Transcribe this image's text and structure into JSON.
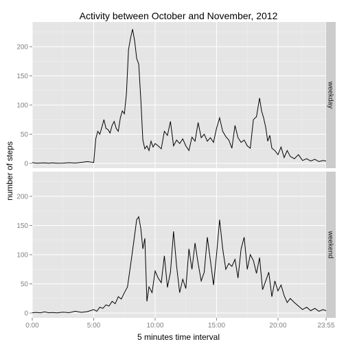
{
  "chart_data": {
    "type": "line",
    "title": "Activity between October and November, 2012",
    "xlabel": "5 minutes time interval",
    "ylabel": "number of steps",
    "xlim": [
      "0:00",
      "23:55"
    ],
    "ylim": [
      0,
      235
    ],
    "x_tick_labels": [
      "0:00",
      "5:00",
      "10:00",
      "15:00",
      "20:00",
      "23:55"
    ],
    "y_tick_labels": [
      "0",
      "50",
      "100",
      "150",
      "200"
    ],
    "y_ticks": [
      0,
      50,
      100,
      150,
      200
    ],
    "grid": true,
    "facets": [
      "weekday",
      "weekend"
    ],
    "colors": {
      "panel_bg": "#e5e5e5",
      "grid": "#ffffff",
      "strip_bg": "#cccccc",
      "line": "#000000"
    },
    "series": [
      {
        "name": "weekday",
        "x": [
          "0:00",
          "0:20",
          "0:40",
          "1:00",
          "1:20",
          "1:40",
          "2:00",
          "2:30",
          "3:00",
          "3:30",
          "4:00",
          "4:30",
          "5:00",
          "5:10",
          "5:20",
          "5:30",
          "5:40",
          "5:50",
          "6:00",
          "6:10",
          "6:20",
          "6:30",
          "6:40",
          "6:50",
          "7:00",
          "7:10",
          "7:20",
          "7:30",
          "7:40",
          "7:50",
          "8:00",
          "8:10",
          "8:20",
          "8:25",
          "8:30",
          "8:35",
          "8:40",
          "8:50",
          "9:00",
          "9:10",
          "9:20",
          "9:30",
          "9:40",
          "9:50",
          "10:00",
          "10:15",
          "10:30",
          "10:45",
          "11:00",
          "11:15",
          "11:30",
          "11:45",
          "12:00",
          "12:15",
          "12:30",
          "12:45",
          "13:00",
          "13:15",
          "13:30",
          "13:45",
          "14:00",
          "14:15",
          "14:30",
          "14:45",
          "15:00",
          "15:15",
          "15:30",
          "15:45",
          "16:00",
          "16:15",
          "16:30",
          "16:45",
          "17:00",
          "17:15",
          "17:30",
          "17:45",
          "18:00",
          "18:15",
          "18:30",
          "18:40",
          "18:50",
          "19:00",
          "19:10",
          "19:20",
          "19:30",
          "19:45",
          "20:00",
          "20:15",
          "20:30",
          "20:45",
          "21:00",
          "21:20",
          "21:40",
          "22:00",
          "22:20",
          "22:40",
          "23:00",
          "23:20",
          "23:40",
          "23:55"
        ],
        "values": [
          1.5,
          0.4,
          0.6,
          1.0,
          0.2,
          0.8,
          0.3,
          0.5,
          1.2,
          0.6,
          1.8,
          3.0,
          1.5,
          42,
          55,
          50,
          62,
          75,
          60,
          58,
          52,
          65,
          72,
          60,
          55,
          78,
          90,
          85,
          120,
          195,
          215,
          230,
          210,
          195,
          180,
          175,
          170,
          110,
          40,
          25,
          30,
          22,
          38,
          28,
          34,
          30,
          25,
          55,
          48,
          72,
          30,
          40,
          34,
          42,
          30,
          22,
          45,
          38,
          70,
          44,
          50,
          38,
          44,
          36,
          60,
          78,
          55,
          46,
          40,
          26,
          65,
          44,
          36,
          40,
          30,
          26,
          75,
          80,
          112,
          90,
          78,
          62,
          38,
          48,
          26,
          22,
          15,
          28,
          10,
          22,
          12,
          8,
          15,
          5,
          8,
          4,
          7,
          3,
          5,
          4
        ]
      },
      {
        "name": "weekend",
        "x": [
          "0:00",
          "0:20",
          "0:40",
          "1:00",
          "1:20",
          "1:40",
          "2:00",
          "2:30",
          "3:00",
          "3:30",
          "4:00",
          "4:30",
          "5:00",
          "5:15",
          "5:30",
          "5:45",
          "6:00",
          "6:15",
          "6:30",
          "6:45",
          "7:00",
          "7:15",
          "7:30",
          "7:45",
          "8:00",
          "8:15",
          "8:30",
          "8:40",
          "8:50",
          "9:00",
          "9:10",
          "9:20",
          "9:30",
          "9:45",
          "10:00",
          "10:15",
          "10:30",
          "10:45",
          "11:00",
          "11:15",
          "11:30",
          "11:45",
          "12:00",
          "12:15",
          "12:30",
          "12:45",
          "13:00",
          "13:15",
          "13:30",
          "13:45",
          "14:00",
          "14:15",
          "14:30",
          "14:45",
          "15:00",
          "15:15",
          "15:30",
          "15:45",
          "16:00",
          "16:15",
          "16:30",
          "16:45",
          "17:00",
          "17:15",
          "17:30",
          "17:45",
          "18:00",
          "18:15",
          "18:30",
          "18:45",
          "19:00",
          "19:15",
          "19:30",
          "19:45",
          "20:00",
          "20:15",
          "20:30",
          "20:45",
          "21:00",
          "21:20",
          "21:40",
          "22:00",
          "22:20",
          "22:40",
          "23:00",
          "23:20",
          "23:40",
          "23:55"
        ],
        "values": [
          0.5,
          1.0,
          0.3,
          2.0,
          0.5,
          0.8,
          0.4,
          1.5,
          0.6,
          3.0,
          1.2,
          2.5,
          6,
          3,
          10,
          8,
          14,
          12,
          20,
          16,
          28,
          24,
          35,
          45,
          82,
          120,
          160,
          165,
          145,
          110,
          128,
          20,
          45,
          35,
          72,
          60,
          52,
          98,
          44,
          70,
          140,
          80,
          35,
          58,
          42,
          110,
          75,
          120,
          85,
          55,
          70,
          130,
          90,
          48,
          100,
          160,
          110,
          75,
          85,
          80,
          92,
          60,
          110,
          130,
          75,
          100,
          90,
          68,
          95,
          40,
          55,
          70,
          28,
          55,
          38,
          48,
          30,
          18,
          25,
          18,
          12,
          6,
          10,
          4,
          8,
          3,
          6,
          4
        ]
      }
    ]
  }
}
